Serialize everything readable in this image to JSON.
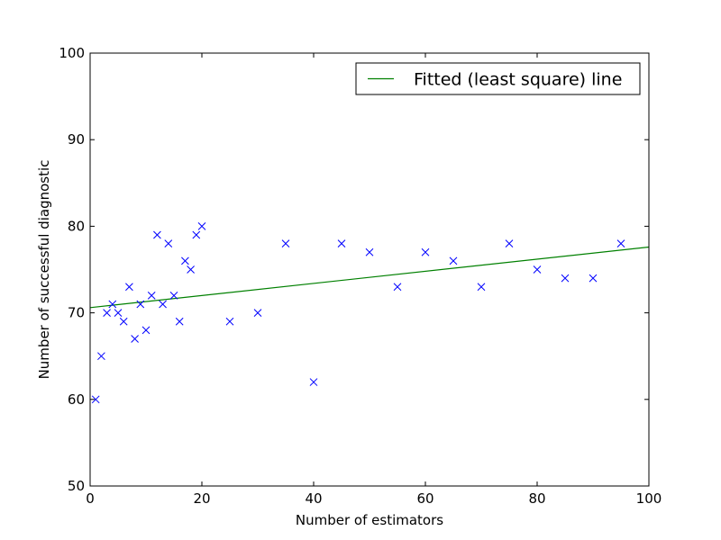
{
  "chart_data": {
    "type": "scatter",
    "title": "",
    "xlabel": "Number of estimators",
    "ylabel": "Number of successful diagnostic",
    "xlim": [
      0,
      100
    ],
    "ylim": [
      50,
      100
    ],
    "xticks": [
      0,
      20,
      40,
      60,
      80,
      100
    ],
    "yticks": [
      50,
      60,
      70,
      80,
      90,
      100
    ],
    "grid": false,
    "legend_position": "top-right",
    "series": [
      {
        "type": "scatter",
        "marker": "x",
        "color": "#0000ff",
        "x": [
          1,
          2,
          3,
          4,
          5,
          6,
          7,
          8,
          9,
          10,
          11,
          12,
          13,
          14,
          15,
          16,
          17,
          18,
          19,
          20,
          25,
          30,
          35,
          40,
          45,
          50,
          55,
          60,
          65,
          70,
          75,
          80,
          85,
          90,
          95
        ],
        "y": [
          60,
          65,
          70,
          71,
          70,
          69,
          73,
          67,
          71,
          68,
          72,
          79,
          71,
          78,
          72,
          69,
          76,
          75,
          79,
          80,
          69,
          70,
          78,
          62,
          78,
          77,
          73,
          77,
          76,
          73,
          78,
          75,
          74,
          74,
          78
        ]
      },
      {
        "name": "Fitted (least square) line",
        "type": "line",
        "color": "#008000",
        "x": [
          0,
          100
        ],
        "y": [
          70.6,
          77.6
        ]
      }
    ]
  }
}
